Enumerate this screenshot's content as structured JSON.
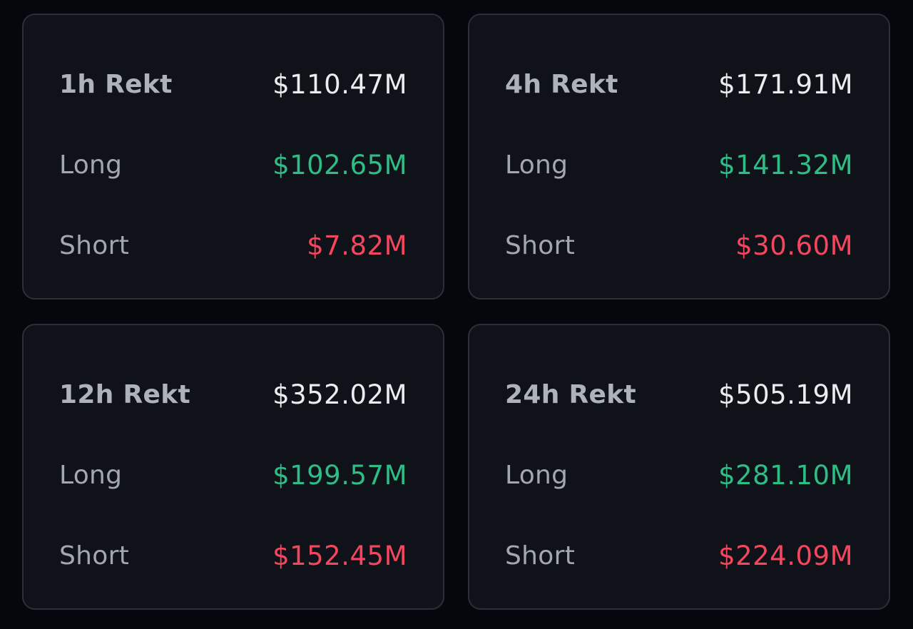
{
  "colors": {
    "background": "#05070c",
    "card": "#0f1219",
    "border": "#2a2f39",
    "long": "#2ebd85",
    "short": "#f6465d",
    "total": "#eaecef",
    "label": "#a3a7b0"
  },
  "cards": [
    {
      "title": "1h Rekt",
      "total": "$110.47M",
      "long_label": "Long",
      "long": "$102.65M",
      "short_label": "Short",
      "short": "$7.82M"
    },
    {
      "title": "4h Rekt",
      "total": "$171.91M",
      "long_label": "Long",
      "long": "$141.32M",
      "short_label": "Short",
      "short": "$30.60M"
    },
    {
      "title": "12h Rekt",
      "total": "$352.02M",
      "long_label": "Long",
      "long": "$199.57M",
      "short_label": "Short",
      "short": "$152.45M"
    },
    {
      "title": "24h Rekt",
      "total": "$505.19M",
      "long_label": "Long",
      "long": "$281.10M",
      "short_label": "Short",
      "short": "$224.09M"
    }
  ]
}
